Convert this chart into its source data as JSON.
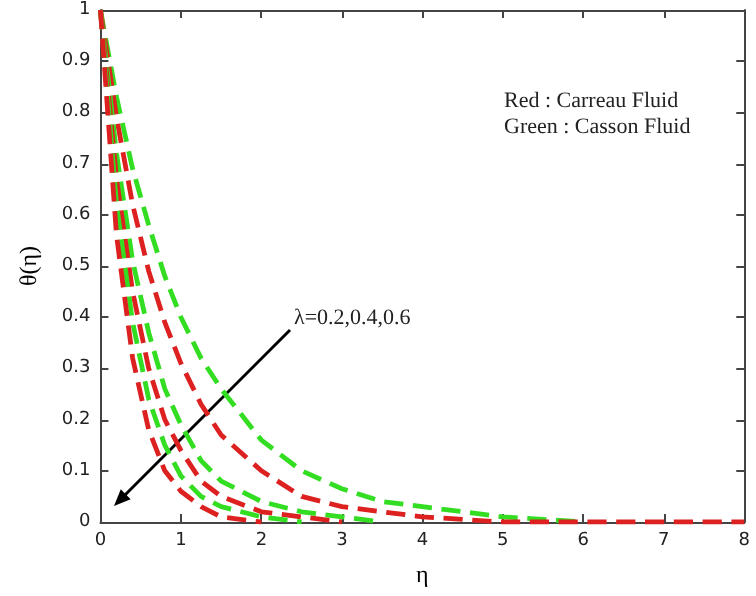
{
  "chart_data": {
    "type": "line",
    "xlabel": "η",
    "ylabel": "θ(η)",
    "x": [
      0,
      0.2,
      0.4,
      0.6,
      0.8,
      1,
      1.25,
      1.5,
      2,
      2.5,
      3,
      3.5,
      4,
      5,
      6,
      8
    ],
    "series": [
      {
        "color": "#33dd22",
        "values": [
          1,
          0.83,
          0.69,
          0.58,
          0.48,
          0.4,
          0.32,
          0.26,
          0.16,
          0.1,
          0.065,
          0.04,
          0.03,
          0.01,
          0,
          null
        ]
      },
      {
        "color": "#dd2020",
        "values": [
          1,
          0.79,
          0.62,
          0.49,
          0.39,
          0.31,
          0.23,
          0.17,
          0.1,
          0.05,
          0.03,
          0.02,
          0.01,
          0,
          0,
          0
        ]
      },
      {
        "color": "#33dd22",
        "values": [
          1,
          0.72,
          0.51,
          0.37,
          0.26,
          0.19,
          0.12,
          0.08,
          0.04,
          0.02,
          0.01,
          0,
          null,
          null,
          null,
          null
        ]
      },
      {
        "color": "#dd2020",
        "values": [
          1,
          0.67,
          0.45,
          0.3,
          0.2,
          0.14,
          0.08,
          0.05,
          0.02,
          0.01,
          0,
          null,
          null,
          null,
          null,
          null
        ]
      },
      {
        "color": "#33dd22",
        "values": [
          1,
          0.62,
          0.39,
          0.24,
          0.15,
          0.09,
          0.05,
          0.03,
          0.01,
          0,
          null,
          null,
          null,
          null,
          null,
          null
        ]
      },
      {
        "color": "#dd2020",
        "values": [
          1,
          0.56,
          0.32,
          0.18,
          0.1,
          0.06,
          0.03,
          0.01,
          0,
          null,
          null,
          null,
          null,
          null,
          null,
          null
        ]
      }
    ],
    "xlim": [
      0,
      8
    ],
    "xticks": [
      0,
      1,
      2,
      3,
      4,
      5,
      6,
      7,
      8
    ],
    "ylim": [
      0,
      1
    ],
    "yticks": [
      0,
      0.1,
      0.2,
      0.3,
      0.4,
      0.5,
      0.6,
      0.7,
      0.8,
      0.9,
      1
    ],
    "grid": false,
    "marker": "none",
    "line_style": "dashed",
    "annotations": [
      "Red : Carreau Fluid",
      "Green : Casson Fluid",
      "λ=0.2,0.4,0.6"
    ]
  }
}
